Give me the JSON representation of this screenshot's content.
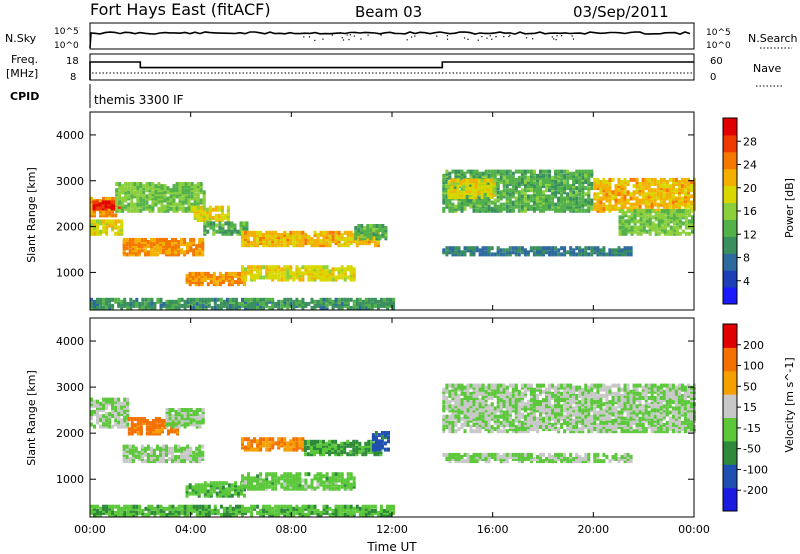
{
  "header": {
    "station": "Fort Hays East (fitACF)",
    "beam": "Beam 03",
    "date": "03/Sep/2011"
  },
  "panels": {
    "nsky": {
      "left_label": "N.Sky",
      "right_label": "N.Search",
      "tick_top": "10^5",
      "tick_bottom": "10^0",
      "right_tick_top": "10^5",
      "right_tick_bottom": "10^0"
    },
    "freq": {
      "left_label_line1": "Freq.",
      "left_label_line2": "[MHz]",
      "right_label": "Nave",
      "left_ticks": [
        "18",
        "8"
      ],
      "right_ticks": [
        "60",
        "0"
      ],
      "freq_steps_utc_mhz": [
        [
          0,
          17
        ],
        [
          2,
          14.2
        ],
        [
          14,
          17
        ],
        [
          24,
          17
        ]
      ]
    },
    "cpid": {
      "label": "CPID",
      "program": "themis 3300 IF"
    }
  },
  "chart_data": [
    {
      "type": "heatmap",
      "title": "",
      "xlabel": "Time UT",
      "ylabel": "Slant Range [km]",
      "xlim": [
        0,
        24
      ],
      "ylim": [
        180,
        4500
      ],
      "x_tick_labels": [
        "00:00",
        "04:00",
        "08:00",
        "12:00",
        "16:00",
        "20:00",
        "00:00"
      ],
      "y_tick_labels": [
        "1000",
        "2000",
        "3000",
        "4000"
      ],
      "colorbar": {
        "label": "Power [dB]",
        "ticks": [
          "4",
          "8",
          "12",
          "16",
          "20",
          "24",
          "28"
        ],
        "range": [
          0,
          30
        ],
        "colors": [
          "#1a1aff",
          "#1c3fb8",
          "#2e6a9e",
          "#3a8f5e",
          "#52b148",
          "#8ccf3c",
          "#d8d800",
          "#f4b000",
          "#f47800",
          "#ee3a00",
          "#e00000"
        ]
      },
      "echo_regions": [
        {
          "x": [
            0.0,
            1.0
          ],
          "y": [
            2200,
            2600
          ],
          "value": 22
        },
        {
          "x": [
            0.1,
            1.3
          ],
          "y": [
            2350,
            2500
          ],
          "value": 28
        },
        {
          "x": [
            1.0,
            4.5
          ],
          "y": [
            2300,
            2900
          ],
          "value": 14
        },
        {
          "x": [
            4.0,
            5.5
          ],
          "y": [
            2100,
            2400
          ],
          "value": 18
        },
        {
          "x": [
            0.0,
            1.3
          ],
          "y": [
            1800,
            2100
          ],
          "value": 18
        },
        {
          "x": [
            1.3,
            4.5
          ],
          "y": [
            1350,
            1700
          ],
          "value": 22
        },
        {
          "x": [
            4.5,
            6.2
          ],
          "y": [
            1800,
            2050
          ],
          "value": 12
        },
        {
          "x": [
            6.0,
            11.5
          ],
          "y": [
            1550,
            1850
          ],
          "value": 20
        },
        {
          "x": [
            3.8,
            6.2
          ],
          "y": [
            700,
            950
          ],
          "value": 22
        },
        {
          "x": [
            6.0,
            10.5
          ],
          "y": [
            800,
            1100
          ],
          "value": 18
        },
        {
          "x": [
            10.5,
            11.8
          ],
          "y": [
            1700,
            2000
          ],
          "value": 12
        },
        {
          "x": [
            14.0,
            20.0
          ],
          "y": [
            2300,
            3200
          ],
          "value": 12
        },
        {
          "x": [
            14.2,
            16.0
          ],
          "y": [
            2600,
            3000
          ],
          "value": 18
        },
        {
          "x": [
            20.0,
            24.0
          ],
          "y": [
            2300,
            3000
          ],
          "value": 20
        },
        {
          "x": [
            21.0,
            24.0
          ],
          "y": [
            1800,
            2300
          ],
          "value": 14
        },
        {
          "x": [
            14.0,
            21.5
          ],
          "y": [
            1350,
            1500
          ],
          "value": 8
        },
        {
          "x": [
            0.0,
            12.0
          ],
          "y": [
            180,
            400
          ],
          "value": 10
        }
      ]
    },
    {
      "type": "heatmap",
      "title": "",
      "xlabel": "Time UT",
      "ylabel": "Slant Range [km]",
      "xlim": [
        0,
        24
      ],
      "ylim": [
        180,
        4500
      ],
      "x_tick_labels": [
        "00:00",
        "04:00",
        "08:00",
        "12:00",
        "16:00",
        "20:00",
        "00:00"
      ],
      "y_tick_labels": [
        "1000",
        "2000",
        "3000",
        "4000"
      ],
      "colorbar": {
        "label": "Velocity [m s^-1]",
        "ticks": [
          "200",
          "100",
          "50",
          "15",
          "-15",
          "-50",
          "-100",
          "-200"
        ],
        "range": [
          -250,
          250
        ],
        "colors": [
          "#1a1ae0",
          "#1f4fb0",
          "#2e8a3a",
          "#5bc83a",
          "#c8c8c8",
          "#f4a000",
          "#f47000",
          "#e00000"
        ]
      },
      "echo_regions": [
        {
          "x": [
            0.0,
            1.5
          ],
          "y": [
            2100,
            2700
          ],
          "value": 0
        },
        {
          "x": [
            1.5,
            3.5
          ],
          "y": [
            1950,
            2300
          ],
          "value": 150
        },
        {
          "x": [
            3.0,
            4.5
          ],
          "y": [
            2100,
            2500
          ],
          "value": 0
        },
        {
          "x": [
            1.3,
            4.5
          ],
          "y": [
            1350,
            1700
          ],
          "value": 0
        },
        {
          "x": [
            6.0,
            8.5
          ],
          "y": [
            1600,
            1850
          ],
          "value": 120
        },
        {
          "x": [
            8.5,
            11.5
          ],
          "y": [
            1500,
            1800
          ],
          "value": -60
        },
        {
          "x": [
            11.2,
            11.8
          ],
          "y": [
            1600,
            2000
          ],
          "value": -150
        },
        {
          "x": [
            3.8,
            6.2
          ],
          "y": [
            600,
            900
          ],
          "value": -40
        },
        {
          "x": [
            6.0,
            10.5
          ],
          "y": [
            750,
            1100
          ],
          "value": -30
        },
        {
          "x": [
            14.0,
            24.0
          ],
          "y": [
            2000,
            3000
          ],
          "value": 0
        },
        {
          "x": [
            14.0,
            21.5
          ],
          "y": [
            1350,
            1500
          ],
          "value": 0
        },
        {
          "x": [
            0.0,
            12.0
          ],
          "y": [
            180,
            400
          ],
          "value": -50
        }
      ]
    }
  ]
}
